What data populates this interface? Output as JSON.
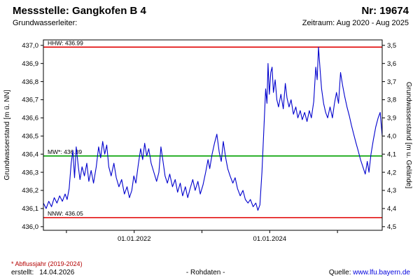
{
  "header": {
    "title": "Messstelle: Gangkofen B 4",
    "number": "Nr: 19674",
    "aquifer_label": "Grundwasserleiter:",
    "period": "Zeitraum: Aug 2020 - Aug 2025"
  },
  "footer": {
    "note": "* Abflussjahr (2019-2024)",
    "created_label": "erstellt:",
    "created_date": "14.04.2026",
    "center": "- Rohdaten -",
    "source_label": "Quelle:",
    "source_link": "www.lfu.bayern.de"
  },
  "colors": {
    "series": "#0000cd",
    "extreme_line": "#e00000",
    "mean_line": "#00a000",
    "link": "#0000dd",
    "note": "#b30000"
  },
  "chart_data": {
    "type": "line",
    "title": "",
    "left_axis": {
      "label": "Grundwasserstand [m ü. NN]",
      "min": 436.0,
      "max": 437.0,
      "tick_values": [
        437.0,
        436.9,
        436.8,
        436.7,
        436.6,
        436.5,
        436.4,
        436.3,
        436.2,
        436.1,
        436.0
      ],
      "tick_labels": [
        "437,0",
        "436,9",
        "436,8",
        "436,7",
        "436,6",
        "436,5",
        "436,4",
        "436,3",
        "436,2",
        "436,1",
        "436,0"
      ]
    },
    "right_axis": {
      "label": "Grundwasserstand [m u. Gelände]",
      "min": 3.5,
      "max": 4.5,
      "tick_labels": [
        "3,5",
        "3,6",
        "3,7",
        "3,8",
        "3,9",
        "4,0",
        "4,1",
        "4,2",
        "4,3",
        "4,4",
        "4,5"
      ]
    },
    "x_axis": {
      "start": "Aug 2020",
      "end": "Aug 2025",
      "labeled_ticks": [
        {
          "f": 0.268,
          "label": "01.01.2022"
        },
        {
          "f": 0.668,
          "label": "01.01.2024"
        }
      ],
      "minor_ticks": [
        0.068,
        0.268,
        0.468,
        0.668,
        0.868
      ]
    },
    "reference_lines": [
      {
        "name": "HHW",
        "label": "HHW: 436.99",
        "value": 436.99,
        "color": "#e00000"
      },
      {
        "name": "MW",
        "label": "MW*: 436.39",
        "value": 436.39,
        "color": "#00a000"
      },
      {
        "name": "NNW",
        "label": "NNW: 436.05",
        "value": 436.05,
        "color": "#e00000"
      }
    ],
    "series": [
      {
        "name": "Grundwasserstand Rohdaten",
        "color": "#0000cd",
        "points": [
          [
            0.0,
            436.13
          ],
          [
            0.008,
            436.1
          ],
          [
            0.016,
            436.14
          ],
          [
            0.024,
            436.11
          ],
          [
            0.032,
            436.16
          ],
          [
            0.04,
            436.13
          ],
          [
            0.048,
            436.17
          ],
          [
            0.056,
            436.14
          ],
          [
            0.064,
            436.18
          ],
          [
            0.07,
            436.15
          ],
          [
            0.076,
            436.21
          ],
          [
            0.082,
            436.35
          ],
          [
            0.087,
            436.42
          ],
          [
            0.092,
            436.27
          ],
          [
            0.097,
            436.44
          ],
          [
            0.103,
            436.33
          ],
          [
            0.108,
            436.26
          ],
          [
            0.114,
            436.33
          ],
          [
            0.121,
            436.28
          ],
          [
            0.128,
            436.35
          ],
          [
            0.134,
            436.25
          ],
          [
            0.141,
            436.31
          ],
          [
            0.148,
            436.24
          ],
          [
            0.156,
            436.33
          ],
          [
            0.163,
            436.44
          ],
          [
            0.169,
            436.38
          ],
          [
            0.175,
            436.47
          ],
          [
            0.181,
            436.4
          ],
          [
            0.187,
            436.45
          ],
          [
            0.193,
            436.33
          ],
          [
            0.2,
            436.28
          ],
          [
            0.208,
            436.35
          ],
          [
            0.215,
            436.27
          ],
          [
            0.223,
            436.22
          ],
          [
            0.231,
            436.26
          ],
          [
            0.239,
            436.18
          ],
          [
            0.247,
            436.22
          ],
          [
            0.254,
            436.16
          ],
          [
            0.261,
            436.2
          ],
          [
            0.267,
            436.28
          ],
          [
            0.273,
            436.24
          ],
          [
            0.28,
            436.34
          ],
          [
            0.287,
            436.43
          ],
          [
            0.293,
            436.37
          ],
          [
            0.299,
            436.46
          ],
          [
            0.305,
            436.39
          ],
          [
            0.311,
            436.43
          ],
          [
            0.318,
            436.35
          ],
          [
            0.326,
            436.3
          ],
          [
            0.334,
            436.25
          ],
          [
            0.341,
            436.3
          ],
          [
            0.347,
            436.44
          ],
          [
            0.353,
            436.36
          ],
          [
            0.359,
            436.28
          ],
          [
            0.366,
            436.24
          ],
          [
            0.373,
            436.29
          ],
          [
            0.381,
            436.22
          ],
          [
            0.389,
            436.26
          ],
          [
            0.396,
            436.19
          ],
          [
            0.404,
            436.24
          ],
          [
            0.411,
            436.17
          ],
          [
            0.419,
            436.22
          ],
          [
            0.426,
            436.16
          ],
          [
            0.433,
            436.21
          ],
          [
            0.441,
            436.26
          ],
          [
            0.448,
            436.2
          ],
          [
            0.456,
            436.25
          ],
          [
            0.463,
            436.18
          ],
          [
            0.471,
            436.23
          ],
          [
            0.479,
            436.3
          ],
          [
            0.486,
            436.37
          ],
          [
            0.491,
            436.32
          ],
          [
            0.498,
            436.4
          ],
          [
            0.505,
            436.46
          ],
          [
            0.512,
            436.51
          ],
          [
            0.519,
            436.41
          ],
          [
            0.525,
            436.36
          ],
          [
            0.531,
            436.47
          ],
          [
            0.538,
            436.38
          ],
          [
            0.544,
            436.32
          ],
          [
            0.551,
            436.28
          ],
          [
            0.559,
            436.24
          ],
          [
            0.566,
            436.27
          ],
          [
            0.573,
            436.21
          ],
          [
            0.581,
            436.17
          ],
          [
            0.589,
            436.2
          ],
          [
            0.596,
            436.15
          ],
          [
            0.604,
            436.13
          ],
          [
            0.611,
            436.15
          ],
          [
            0.619,
            436.11
          ],
          [
            0.627,
            436.13
          ],
          [
            0.633,
            436.09
          ],
          [
            0.639,
            436.12
          ],
          [
            0.645,
            436.3
          ],
          [
            0.651,
            436.55
          ],
          [
            0.656,
            436.76
          ],
          [
            0.66,
            436.68
          ],
          [
            0.663,
            436.9
          ],
          [
            0.667,
            436.73
          ],
          [
            0.671,
            436.85
          ],
          [
            0.675,
            436.88
          ],
          [
            0.679,
            436.74
          ],
          [
            0.684,
            436.81
          ],
          [
            0.689,
            436.7
          ],
          [
            0.694,
            436.66
          ],
          [
            0.701,
            436.73
          ],
          [
            0.708,
            436.65
          ],
          [
            0.714,
            436.79
          ],
          [
            0.719,
            436.71
          ],
          [
            0.725,
            436.66
          ],
          [
            0.731,
            436.7
          ],
          [
            0.738,
            436.62
          ],
          [
            0.745,
            436.66
          ],
          [
            0.751,
            436.6
          ],
          [
            0.758,
            436.64
          ],
          [
            0.764,
            436.59
          ],
          [
            0.771,
            436.63
          ],
          [
            0.778,
            436.58
          ],
          [
            0.785,
            436.64
          ],
          [
            0.791,
            436.6
          ],
          [
            0.798,
            436.69
          ],
          [
            0.804,
            436.88
          ],
          [
            0.808,
            436.81
          ],
          [
            0.812,
            436.99
          ],
          [
            0.817,
            436.86
          ],
          [
            0.821,
            436.76
          ],
          [
            0.827,
            436.68
          ],
          [
            0.833,
            436.63
          ],
          [
            0.839,
            436.6
          ],
          [
            0.846,
            436.66
          ],
          [
            0.853,
            436.6
          ],
          [
            0.859,
            436.68
          ],
          [
            0.865,
            436.74
          ],
          [
            0.871,
            436.68
          ],
          [
            0.877,
            436.85
          ],
          [
            0.883,
            436.78
          ],
          [
            0.889,
            436.72
          ],
          [
            0.896,
            436.66
          ],
          [
            0.903,
            436.61
          ],
          [
            0.909,
            436.56
          ],
          [
            0.916,
            436.51
          ],
          [
            0.923,
            436.46
          ],
          [
            0.929,
            436.42
          ],
          [
            0.936,
            436.37
          ],
          [
            0.943,
            436.33
          ],
          [
            0.95,
            436.29
          ],
          [
            0.956,
            436.36
          ],
          [
            0.961,
            436.3
          ],
          [
            0.967,
            436.4
          ],
          [
            0.974,
            436.48
          ],
          [
            0.981,
            436.55
          ],
          [
            0.988,
            436.6
          ],
          [
            0.994,
            436.63
          ],
          [
            1.0,
            436.5
          ]
        ]
      }
    ]
  }
}
